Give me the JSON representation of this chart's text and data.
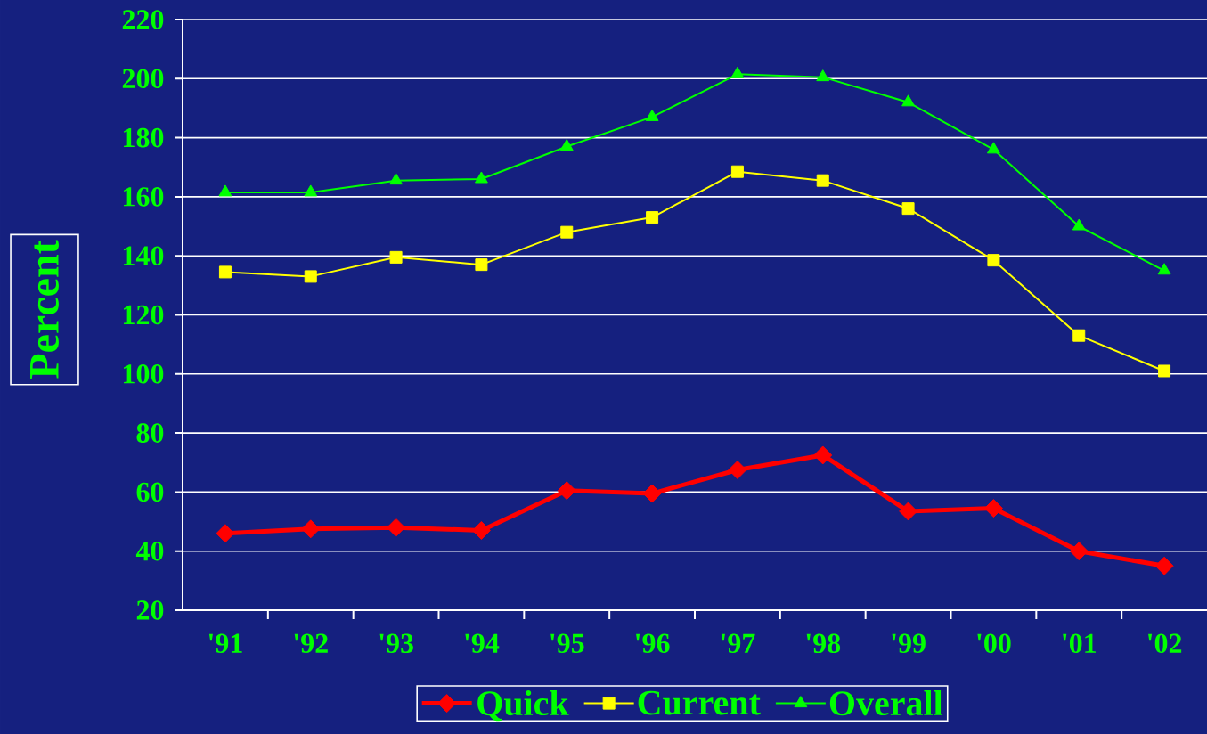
{
  "chart_data": {
    "type": "line",
    "categories": [
      "'91",
      "'92",
      "'93",
      "'94",
      "'95",
      "'96",
      "'97",
      "'98",
      "'99",
      "'00",
      "'01",
      "'02"
    ],
    "ylabel": "Percent",
    "ylim": [
      20,
      220
    ],
    "yticks": [
      20,
      40,
      60,
      80,
      100,
      120,
      140,
      160,
      180,
      200,
      220
    ],
    "grid": "y",
    "legend": "bottom",
    "series": [
      {
        "name": "Quick",
        "color": "#ff0000",
        "marker": "diamond",
        "values": [
          46,
          47.5,
          48,
          47,
          60.5,
          59.5,
          67.5,
          72.5,
          53.5,
          54.5,
          40,
          35
        ]
      },
      {
        "name": "Current",
        "color": "#ffff00",
        "marker": "square",
        "values": [
          134.5,
          133,
          139.5,
          137,
          148,
          153,
          168.5,
          165.5,
          156,
          138.5,
          113,
          101
        ]
      },
      {
        "name": "Overall",
        "color": "#00ff00",
        "marker": "triangle",
        "values": [
          161.5,
          161.5,
          165.5,
          166,
          177,
          187,
          201.5,
          200.5,
          192,
          176,
          150,
          135
        ]
      }
    ]
  }
}
